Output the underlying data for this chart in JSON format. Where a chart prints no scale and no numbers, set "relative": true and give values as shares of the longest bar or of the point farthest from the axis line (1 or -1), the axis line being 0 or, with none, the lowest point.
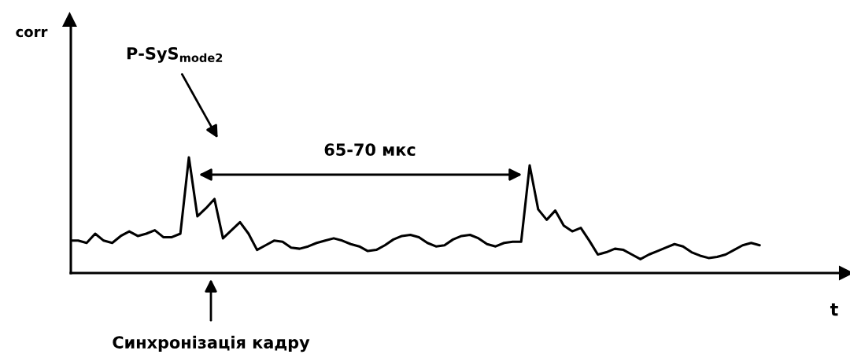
{
  "chart_data": {
    "type": "line",
    "relative": true,
    "xlabel": "t",
    "categories": [
      null,
      null,
      null,
      null,
      null,
      null,
      null,
      null,
      null,
      null,
      null,
      null,
      null,
      null,
      null,
      null,
      null,
      null,
      null,
      null,
      null,
      null,
      null,
      null,
      null,
      null,
      null,
      null,
      null,
      null,
      null,
      null,
      null,
      null,
      null,
      null,
      null,
      null,
      null,
      null,
      null,
      null,
      null,
      null,
      null,
      null,
      null,
      null,
      null,
      null,
      null,
      null,
      null,
      null,
      null,
      null,
      null,
      null,
      null,
      null,
      null,
      null,
      null,
      null,
      null,
      null,
      null,
      null,
      null,
      null,
      null,
      null,
      null,
      null,
      null,
      null,
      null,
      null,
      null,
      null,
      null,
      null
    ],
    "series": [
      {
        "color": "#000000",
        "values": [
          0.28,
          0.28,
          0.26,
          0.34,
          0.28,
          0.26,
          0.32,
          0.36,
          0.32,
          0.34,
          0.37,
          0.31,
          0.31,
          0.34,
          1,
          0.49,
          0.56,
          0.64,
          0.3,
          0.37,
          0.44,
          0.34,
          0.2,
          0.24,
          0.28,
          0.27,
          0.22,
          0.21,
          0.23,
          0.26,
          0.28,
          0.3,
          0.28,
          0.25,
          0.23,
          0.19,
          0.2,
          0.24,
          0.29,
          0.32,
          0.33,
          0.31,
          0.26,
          0.23,
          0.24,
          0.29,
          0.32,
          0.33,
          0.3,
          0.25,
          0.23,
          0.26,
          0.27,
          0.27,
          0.93,
          0.55,
          0.46,
          0.54,
          0.41,
          0.36,
          0.39,
          0.28,
          0.16,
          0.18,
          0.21,
          0.2,
          0.16,
          0.12,
          0.16,
          0.19,
          0.22,
          0.25,
          0.23,
          0.18,
          0.15,
          0.13,
          0.14,
          0.16,
          0.2,
          0.24,
          0.26,
          0.24
        ]
      }
    ],
    "annotations": [
      "P-SyS$_{mode2}$",
      "65-70 мкс",
      "Синхронізація кадру",
      "corr"
    ],
    "marker": "none",
    "line_style": "solid"
  }
}
